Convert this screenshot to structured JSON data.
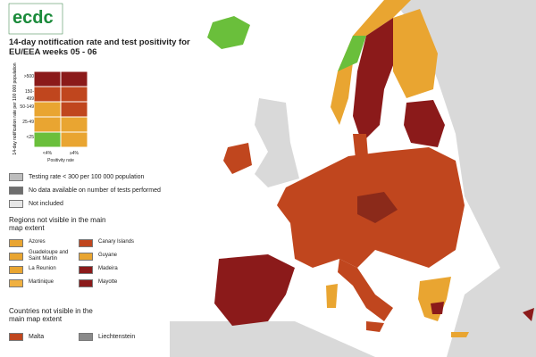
{
  "logo": "ecdc",
  "title": "14-day notification rate and test positivity for EU/EEA weeks 05 - 06",
  "matrix": {
    "y_axis_label": "14-day notification rate per 100 000 population",
    "y_labels": [
      ">500",
      "150-499",
      "50-149",
      "25-49",
      "<25"
    ],
    "x_labels": [
      "<4%",
      "≥4%"
    ],
    "x_axis_label": "Positivity rate"
  },
  "legend": [
    "Testing rate < 300 per 100 000 population",
    "No data available on number of tests performed",
    "Not included"
  ],
  "regions": {
    "heading": "Regions not visible in the main map extent",
    "items": [
      "Azores",
      "Guadeloupe and Saint Martin",
      "La Reunion",
      "Martinique",
      "Canary Islands",
      "Guyane",
      "Madeira",
      "Mayotte"
    ]
  },
  "countries": {
    "heading": "Countries not visible in the main map extent",
    "items": [
      "Malta",
      "Liechtenstein"
    ]
  }
}
